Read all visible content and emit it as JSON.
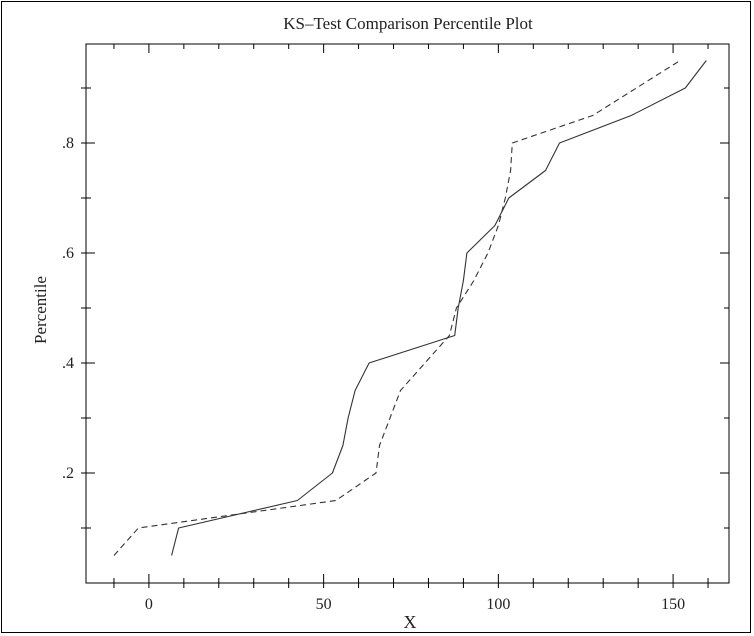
{
  "chart_data": {
    "type": "line",
    "title": "KS–Test Comparison Percentile Plot",
    "xlabel": "X",
    "ylabel": "Percentile",
    "xlim": [
      -18,
      166
    ],
    "ylim": [
      0.0,
      0.98
    ],
    "x_ticks": [
      0,
      50,
      100,
      150
    ],
    "x_tick_labels": [
      "0",
      "50",
      "100",
      "150"
    ],
    "x_minor_ticks": [
      -10,
      10,
      20,
      30,
      40,
      60,
      70,
      80,
      90,
      110,
      120,
      130,
      140,
      160
    ],
    "y_ticks": [
      0.2,
      0.4,
      0.6,
      0.8
    ],
    "y_tick_labels": [
      ".2",
      ".4",
      ".6",
      ".8"
    ],
    "y_minor_ticks": [
      0.1,
      0.3,
      0.5,
      0.7,
      0.9
    ],
    "grid": false,
    "legend": "none",
    "series": [
      {
        "style": "solid",
        "color": "#333333",
        "points": [
          [
            6.5,
            0.05
          ],
          [
            8.5,
            0.1
          ],
          [
            42.5,
            0.15
          ],
          [
            52.5,
            0.2
          ],
          [
            55.5,
            0.25
          ],
          [
            57,
            0.3
          ],
          [
            59,
            0.35
          ],
          [
            63,
            0.4
          ],
          [
            87.5,
            0.45
          ],
          [
            88.5,
            0.5
          ],
          [
            90,
            0.55
          ],
          [
            91,
            0.6
          ],
          [
            99,
            0.65
          ],
          [
            103,
            0.7
          ],
          [
            113.5,
            0.75
          ],
          [
            117.5,
            0.8
          ],
          [
            138,
            0.85
          ],
          [
            153.5,
            0.9
          ],
          [
            159.5,
            0.95
          ]
        ]
      },
      {
        "style": "dashed",
        "color": "#333333",
        "points": [
          [
            -10,
            0.05
          ],
          [
            -3,
            0.1
          ],
          [
            53.5,
            0.15
          ],
          [
            65,
            0.2
          ],
          [
            66,
            0.25
          ],
          [
            69,
            0.3
          ],
          [
            72,
            0.35
          ],
          [
            86,
            0.45
          ],
          [
            88,
            0.5
          ],
          [
            93,
            0.55
          ],
          [
            97,
            0.6
          ],
          [
            100,
            0.65
          ],
          [
            102,
            0.7
          ],
          [
            103.5,
            0.75
          ],
          [
            104,
            0.8
          ],
          [
            127,
            0.85
          ],
          [
            152,
            0.95
          ]
        ]
      }
    ]
  }
}
